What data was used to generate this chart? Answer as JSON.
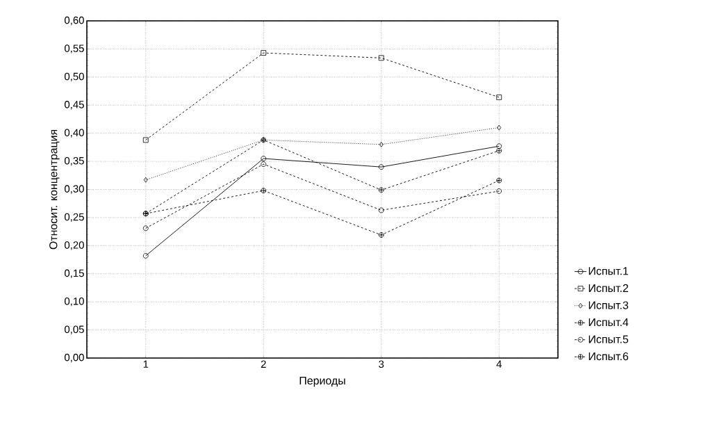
{
  "chart_data": {
    "type": "line",
    "xlabel": "Периоды",
    "ylabel": "Относит. концентрация",
    "x": [
      1,
      2,
      3,
      4
    ],
    "series": [
      {
        "name": "Испыт.1",
        "color": "#000000",
        "marker": "circle",
        "line_style": "solid",
        "values": [
          0.182,
          0.355,
          0.34,
          0.377
        ]
      },
      {
        "name": "Испыт.2",
        "color": "#000000",
        "marker": "square",
        "line_style": "dashed",
        "values": [
          0.388,
          0.543,
          0.534,
          0.464
        ]
      },
      {
        "name": "Испыт.3",
        "color": "#000000",
        "marker": "diamond",
        "line_style": "dotted",
        "values": [
          0.317,
          0.388,
          0.38,
          0.41
        ]
      },
      {
        "name": "Испыт.4",
        "color": "#000000",
        "marker": "cross",
        "line_style": "dashed",
        "values": [
          0.257,
          0.388,
          0.299,
          0.369
        ]
      },
      {
        "name": "Испыт.5",
        "color": "#000000",
        "marker": "circle",
        "line_style": "dashed",
        "values": [
          0.231,
          0.345,
          0.263,
          0.297
        ]
      },
      {
        "name": "Испыт.6",
        "color": "#000000",
        "marker": "cross",
        "line_style": "dashed",
        "values": [
          0.257,
          0.298,
          0.219,
          0.316
        ]
      }
    ],
    "xlim": [
      0.5,
      4.5
    ],
    "xticks": [
      1,
      2,
      3,
      4
    ],
    "ylim": [
      0,
      0.6
    ],
    "yticks": [
      {
        "value": 0,
        "label": "0,00"
      },
      {
        "value": 0.05,
        "label": "0,05"
      },
      {
        "value": 0.1,
        "label": "0,10"
      },
      {
        "value": 0.15,
        "label": "0,15"
      },
      {
        "value": 0.2,
        "label": "0,20"
      },
      {
        "value": 0.25,
        "label": "0,25"
      },
      {
        "value": 0.3,
        "label": "0,30"
      },
      {
        "value": 0.35,
        "label": "0,35"
      },
      {
        "value": 0.4,
        "label": "0,40"
      },
      {
        "value": 0.45,
        "label": "0,45"
      },
      {
        "value": 0.5,
        "label": "0,50"
      },
      {
        "value": 0.55,
        "label": "0,55"
      },
      {
        "value": 0.6,
        "label": "0,60"
      }
    ],
    "grid": true,
    "legend": "right"
  }
}
